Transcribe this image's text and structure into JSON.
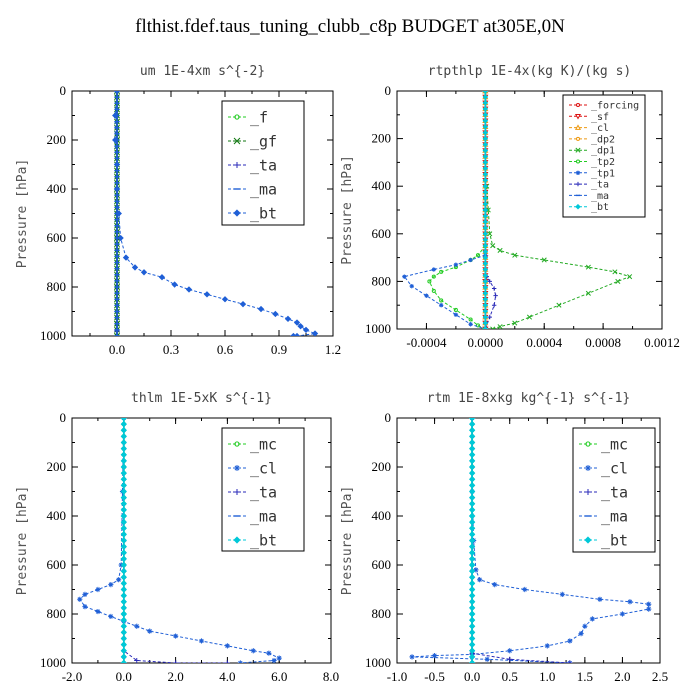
{
  "title": "flthist.fdef.taus_tuning_clubb_c8p  BUDGET at305E,0N",
  "colors": {
    "green": "#22cc22",
    "dark_green": "#117711",
    "blue": "#1f5fd6",
    "dark_blue": "#2a2ab8",
    "cyan": "#00c8d8",
    "red": "#dd1111",
    "orange": "#ee9911",
    "gray": "#808080"
  },
  "chart_data": [
    {
      "type": "line",
      "title": "um  1E-4xm s^{-2}",
      "ylabel": "Pressure [hPa]",
      "xlim": [
        -0.25,
        1.2
      ],
      "ylim": [
        0,
        1000
      ],
      "y_inverted": true,
      "xticks": [
        "0.0",
        "0.3",
        "0.6",
        "0.9",
        "1.2"
      ],
      "xtick_values": [
        0,
        0.3,
        0.6,
        0.9,
        1.2
      ],
      "yticks": [
        "0",
        "200",
        "400",
        "600",
        "800",
        "1000"
      ],
      "legend_position": "top-right",
      "series": [
        {
          "name": "_f",
          "color": "#22cc22",
          "marker": "circle",
          "x": [
            0,
            0,
            0,
            0,
            0,
            0,
            0
          ],
          "y": [
            0,
            200,
            400,
            600,
            800,
            950,
            1000
          ]
        },
        {
          "name": "_gf",
          "color": "#117711",
          "marker": "x",
          "x": [
            0,
            0,
            0,
            0,
            0,
            0,
            0
          ],
          "y": [
            0,
            200,
            400,
            600,
            800,
            950,
            1000
          ]
        },
        {
          "name": "_ta",
          "color": "#2a2ab8",
          "marker": "plus",
          "x": [
            0,
            0,
            0,
            0,
            0
          ],
          "y": [
            0,
            400,
            800,
            980,
            1000
          ]
        },
        {
          "name": "_ma",
          "color": "#1f5fd6",
          "marker": "dash",
          "x": [
            0,
            0,
            0,
            0
          ],
          "y": [
            0,
            500,
            900,
            1000
          ]
        },
        {
          "name": "_bt",
          "color": "#1f5fd6",
          "marker": "diamond",
          "x": [
            0,
            -0.01,
            -0.01,
            0,
            0,
            0.01,
            0.02,
            0.05,
            0.1,
            0.15,
            0.25,
            0.32,
            0.4,
            0.5,
            0.6,
            0.7,
            0.8,
            0.88,
            0.95,
            1.0,
            1.02,
            1.05,
            1.1,
            1.0,
            0.98
          ],
          "y": [
            0,
            100,
            200,
            300,
            400,
            500,
            600,
            680,
            720,
            740,
            760,
            790,
            810,
            830,
            850,
            870,
            890,
            910,
            930,
            945,
            960,
            975,
            990,
            1000,
            1000
          ]
        }
      ]
    },
    {
      "type": "line",
      "title": "rtpthlp  1E-4x(kg K)/(kg s)",
      "ylabel": "Pressure [hPa]",
      "xlim": [
        -0.0006,
        0.0012
      ],
      "ylim": [
        0,
        1000
      ],
      "y_inverted": true,
      "xticks": [
        "-0.0004",
        "0.0000",
        "0.0004",
        "0.0008",
        "0.0012"
      ],
      "xtick_values": [
        -0.0004,
        0,
        0.0004,
        0.0008,
        0.0012
      ],
      "yticks": [
        "0",
        "200",
        "400",
        "600",
        "800",
        "1000"
      ],
      "legend_position": "top-right",
      "series": [
        {
          "name": "_forcing",
          "color": "#dd1111",
          "marker": "circle",
          "x": [
            0,
            0,
            0,
            0,
            0,
            0
          ],
          "y": [
            0,
            200,
            400,
            600,
            800,
            1000
          ]
        },
        {
          "name": "_sf",
          "color": "#dd1111",
          "marker": "tri-down",
          "x": [
            0,
            0,
            0,
            0
          ],
          "y": [
            0,
            400,
            800,
            1000
          ]
        },
        {
          "name": "_cl",
          "color": "#ee9911",
          "marker": "tri-up",
          "x": [
            0,
            0,
            0,
            0
          ],
          "y": [
            0,
            400,
            800,
            1000
          ]
        },
        {
          "name": "_dp2",
          "color": "#ee9911",
          "marker": "circle",
          "x": [
            0,
            0,
            0,
            0
          ],
          "y": [
            0,
            400,
            800,
            1000
          ]
        },
        {
          "name": "_dp1",
          "color": "#22aa22",
          "marker": "x",
          "x": [
            1e-05,
            2e-05,
            3e-05,
            5e-05,
            0.0001,
            0.0002,
            0.0004,
            0.0007,
            0.00088,
            0.00098,
            0.0009,
            0.0007,
            0.0005,
            0.0003,
            0.0002,
            0.0001,
            5e-05
          ],
          "y": [
            400,
            500,
            600,
            650,
            670,
            690,
            710,
            740,
            760,
            780,
            800,
            850,
            900,
            950,
            975,
            990,
            1000
          ]
        },
        {
          "name": "_tp2",
          "color": "#22cc22",
          "marker": "circle",
          "x": [
            0,
            -5e-05,
            -0.0001,
            -0.0002,
            -0.0003,
            -0.00035,
            -0.00038,
            -0.00035,
            -0.0003,
            -0.0002,
            -0.0001,
            -5e-05,
            0
          ],
          "y": [
            650,
            690,
            710,
            740,
            760,
            780,
            800,
            840,
            880,
            920,
            960,
            985,
            1000
          ]
        },
        {
          "name": "_tp1",
          "color": "#1f5fd6",
          "marker": "asterisk",
          "x": [
            0,
            -0.0001,
            -0.0002,
            -0.00035,
            -0.00055,
            -0.0005,
            -0.0004,
            -0.0003,
            -0.0002,
            -0.0001,
            0
          ],
          "y": [
            690,
            710,
            730,
            750,
            780,
            820,
            860,
            900,
            940,
            980,
            1000
          ]
        },
        {
          "name": "_ta",
          "color": "#2a2ab8",
          "marker": "plus",
          "x": [
            0,
            1e-05,
            3e-05,
            6e-05,
            7e-05,
            6e-05,
            3e-05,
            0
          ],
          "y": [
            750,
            780,
            800,
            830,
            860,
            900,
            950,
            1000
          ]
        },
        {
          "name": "_ma",
          "color": "#1f5fd6",
          "marker": "dash",
          "x": [
            0,
            0,
            0
          ],
          "y": [
            0,
            500,
            1000
          ]
        },
        {
          "name": "_bt",
          "color": "#00c8d8",
          "marker": "diamond",
          "x": [
            0,
            0,
            0
          ],
          "y": [
            0,
            500,
            1000
          ]
        }
      ]
    },
    {
      "type": "line",
      "title": "thlm  1E-5xK s^{-1}",
      "ylabel": "Pressure [hPa]",
      "xlim": [
        -2.0,
        8.0
      ],
      "ylim": [
        0,
        1000
      ],
      "y_inverted": true,
      "xticks": [
        "-2.0",
        "0.0",
        "2.0",
        "4.0",
        "6.0",
        "8.0"
      ],
      "xtick_values": [
        -2,
        0,
        2,
        4,
        6,
        8
      ],
      "yticks": [
        "0",
        "200",
        "400",
        "600",
        "800",
        "1000"
      ],
      "legend_position": "top-right",
      "series": [
        {
          "name": "_mc",
          "color": "#22cc22",
          "marker": "circle",
          "x": [
            0,
            0,
            0,
            0,
            0,
            0
          ],
          "y": [
            0,
            200,
            400,
            600,
            800,
            1000
          ]
        },
        {
          "name": "_cl",
          "color": "#1f5fd6",
          "marker": "asterisk",
          "x": [
            0,
            -0.05,
            -0.1,
            -0.2,
            -0.5,
            -1.0,
            -1.5,
            -1.7,
            -1.5,
            -1.0,
            -0.5,
            0,
            0.5,
            1.0,
            2.0,
            3.0,
            4.0,
            5.0,
            5.6,
            6.0,
            5.8,
            4.5
          ],
          "y": [
            0,
            300,
            600,
            660,
            680,
            700,
            720,
            740,
            770,
            790,
            810,
            830,
            850,
            870,
            890,
            910,
            930,
            950,
            960,
            980,
            990,
            1000
          ]
        },
        {
          "name": "_ta",
          "color": "#2a2ab8",
          "marker": "plus",
          "x": [
            0,
            0,
            0,
            0.5,
            2.0,
            4.0
          ],
          "y": [
            0,
            500,
            950,
            990,
            1000,
            1000
          ]
        },
        {
          "name": "_ma",
          "color": "#1f5fd6",
          "marker": "dash",
          "x": [
            0,
            0,
            0
          ],
          "y": [
            0,
            500,
            1000
          ]
        },
        {
          "name": "_bt",
          "color": "#00c8d8",
          "marker": "diamond",
          "x": [
            0,
            0,
            0,
            0
          ],
          "y": [
            0,
            400,
            800,
            1000
          ]
        }
      ]
    },
    {
      "type": "line",
      "title": "rtm  1E-8xkg kg^{-1} s^{-1}",
      "ylabel": "Pressure [hPa]",
      "xlim": [
        -1.0,
        2.5
      ],
      "ylim": [
        0,
        1000
      ],
      "y_inverted": true,
      "xticks": [
        "-1.0",
        "-0.5",
        "0.0",
        "0.5",
        "1.0",
        "1.5",
        "2.0",
        "2.5"
      ],
      "xtick_values": [
        -1,
        -0.5,
        0,
        0.5,
        1,
        1.5,
        2,
        2.5
      ],
      "yticks": [
        "0",
        "200",
        "400",
        "600",
        "800",
        "1000"
      ],
      "legend_position": "top-right",
      "series": [
        {
          "name": "_mc",
          "color": "#22cc22",
          "marker": "circle",
          "x": [
            0,
            0,
            0,
            0,
            0,
            0
          ],
          "y": [
            0,
            200,
            400,
            600,
            800,
            1000
          ]
        },
        {
          "name": "_cl",
          "color": "#1f5fd6",
          "marker": "asterisk",
          "x": [
            0,
            0,
            0.02,
            0.05,
            0.1,
            0.3,
            0.7,
            1.2,
            1.7,
            2.1,
            2.35,
            2.35,
            2.0,
            1.6,
            1.5,
            1.45,
            1.3,
            1.0,
            0.5,
            0,
            -0.5,
            -0.8,
            0.2,
            1.3
          ],
          "y": [
            0,
            300,
            500,
            620,
            660,
            680,
            700,
            720,
            740,
            750,
            760,
            780,
            800,
            820,
            850,
            880,
            910,
            930,
            950,
            965,
            970,
            975,
            985,
            1000
          ]
        },
        {
          "name": "_ta",
          "color": "#2a2ab8",
          "marker": "plus",
          "x": [
            0,
            0,
            0,
            0.5,
            1.3
          ],
          "y": [
            0,
            500,
            960,
            985,
            1000
          ]
        },
        {
          "name": "_ma",
          "color": "#1f5fd6",
          "marker": "dash",
          "x": [
            0,
            0,
            0
          ],
          "y": [
            0,
            500,
            1000
          ]
        },
        {
          "name": "_bt",
          "color": "#00c8d8",
          "marker": "diamond",
          "x": [
            0,
            0,
            0,
            0
          ],
          "y": [
            0,
            400,
            800,
            1000
          ]
        }
      ]
    }
  ]
}
